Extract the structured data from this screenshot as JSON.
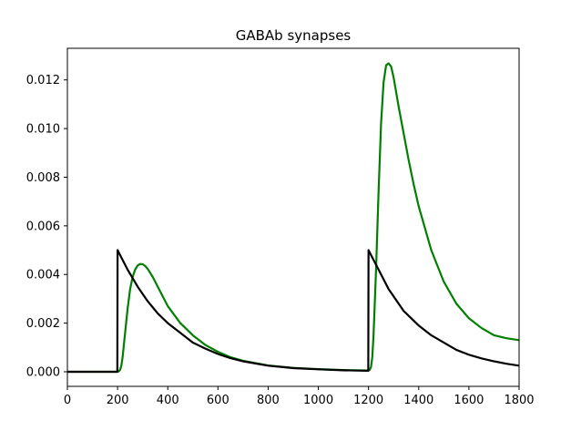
{
  "chart_data": {
    "type": "line",
    "title": "GABAb synapses",
    "xlabel": "",
    "ylabel": "",
    "xlim": [
      0,
      1800
    ],
    "ylim": [
      -0.0006,
      0.0133
    ],
    "x_ticks": [
      0,
      200,
      400,
      600,
      800,
      1000,
      1200,
      1400,
      1600,
      1800
    ],
    "x_tick_labels": [
      "0",
      "200",
      "400",
      "600",
      "800",
      "1000",
      "1200",
      "1400",
      "1600",
      "1800"
    ],
    "y_ticks": [
      0.0,
      0.002,
      0.004,
      0.006,
      0.008,
      0.01,
      0.012
    ],
    "y_tick_labels": [
      "0.000",
      "0.002",
      "0.004",
      "0.006",
      "0.008",
      "0.010",
      "0.012"
    ],
    "grid": false,
    "legend": "none",
    "series": [
      {
        "color": "#008000",
        "x": [
          0,
          195,
          200,
          205,
          210,
          215,
          220,
          230,
          240,
          250,
          260,
          270,
          280,
          290,
          300,
          310,
          320,
          340,
          360,
          380,
          400,
          450,
          500,
          550,
          600,
          650,
          700,
          800,
          900,
          1000,
          1100,
          1195,
          1200,
          1205,
          1210,
          1215,
          1220,
          1230,
          1240,
          1250,
          1260,
          1270,
          1280,
          1290,
          1300,
          1310,
          1320,
          1340,
          1360,
          1380,
          1400,
          1450,
          1500,
          1550,
          1600,
          1650,
          1700,
          1750,
          1800
        ],
        "y": [
          0.0,
          0.0,
          0.0,
          2e-05,
          8e-05,
          0.00025,
          0.0006,
          0.0016,
          0.0026,
          0.0034,
          0.0039,
          0.0042,
          0.00437,
          0.00443,
          0.00442,
          0.00435,
          0.00423,
          0.0039,
          0.0035,
          0.0031,
          0.0027,
          0.002,
          0.0015,
          0.0011,
          0.00082,
          0.0006,
          0.00045,
          0.00026,
          0.00016,
          0.00011,
          7e-05,
          5e-05,
          5e-05,
          8e-05,
          0.0002,
          0.0006,
          0.0015,
          0.0042,
          0.0074,
          0.0102,
          0.0119,
          0.0126,
          0.01268,
          0.01255,
          0.0121,
          0.0115,
          0.0109,
          0.0098,
          0.0087,
          0.0077,
          0.0068,
          0.005,
          0.0037,
          0.0028,
          0.0022,
          0.0018,
          0.0015,
          0.00138,
          0.0013
        ]
      },
      {
        "color": "#000000",
        "x": [
          0,
          199,
          200,
          220,
          240,
          260,
          280,
          300,
          320,
          340,
          360,
          380,
          400,
          450,
          500,
          550,
          600,
          650,
          700,
          800,
          900,
          1000,
          1100,
          1199,
          1200,
          1220,
          1240,
          1260,
          1280,
          1300,
          1320,
          1340,
          1360,
          1380,
          1400,
          1450,
          1500,
          1550,
          1600,
          1650,
          1700,
          1750,
          1800
        ],
        "y": [
          0.0,
          0.0,
          0.005,
          0.0046,
          0.0042,
          0.00385,
          0.0035,
          0.0032,
          0.0029,
          0.00265,
          0.0024,
          0.0022,
          0.002,
          0.0016,
          0.0012,
          0.00095,
          0.00073,
          0.00056,
          0.00043,
          0.00025,
          0.00015,
          0.0001,
          6e-05,
          4e-05,
          0.005,
          0.0046,
          0.0042,
          0.0038,
          0.0034,
          0.0031,
          0.0028,
          0.0025,
          0.0023,
          0.0021,
          0.0019,
          0.0015,
          0.0012,
          0.0009,
          0.0007,
          0.00055,
          0.00043,
          0.00033,
          0.00025
        ]
      }
    ]
  }
}
